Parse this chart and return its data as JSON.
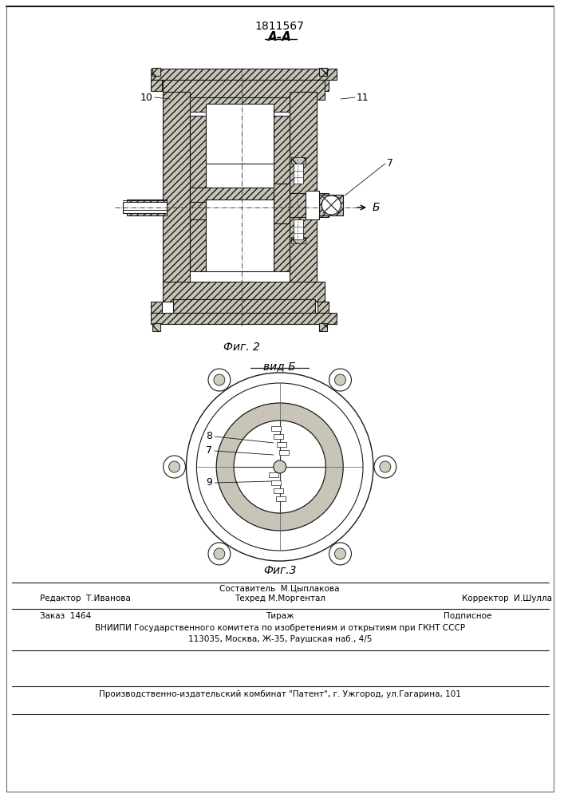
{
  "patent_number": "1811567",
  "fig2_label": "А-А",
  "fig2_caption": "Фиг. 2",
  "fig3_caption": "вид Б",
  "fig3_bottom_caption": "Фиг.3",
  "arrow_label": "Б",
  "footer_col1_row1": "Редактор  Т.Иванова",
  "footer_col2_row1": "Составитель  М.Цыплакова",
  "footer_col2_row2": "Техред М.Моргентал",
  "footer_col3_row1": "Корректор  И.Шулла",
  "footer_zakas": "Заказ  1464",
  "footer_tirazh": "Тираж",
  "footer_podpisnoe": "Подписное",
  "footer_vniipи": "ВНИИПИ Государственного комитета по изобретениям и открытиям при ГКНТ СССР",
  "footer_address": "113035, Москва, Ж-35, Раушская наб., 4/5",
  "footer_producer": "Производственно-издательский комбинат \"Патент\", г. Ужгород, ул.Гагарина, 101",
  "hatch_fc": "#c8c5b8",
  "white_fc": "#ffffff",
  "line_color": "#1a1a1a"
}
